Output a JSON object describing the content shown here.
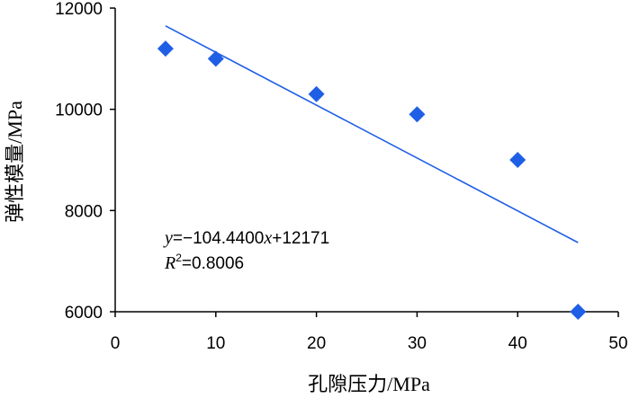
{
  "chart_data": {
    "type": "scatter",
    "title": "",
    "xlabel": "孔隙压力/MPa",
    "ylabel": "弹性模量/MPa",
    "xlim": [
      0,
      50
    ],
    "ylim": [
      6000,
      12000
    ],
    "x_ticks": [
      0,
      10,
      20,
      30,
      40,
      50
    ],
    "y_ticks": [
      6000,
      8000,
      10000,
      12000
    ],
    "x_tick_labels": [
      "0",
      "10",
      "20",
      "30",
      "40",
      "50"
    ],
    "y_tick_labels": [
      "6000",
      "8000",
      "10000",
      "12000"
    ],
    "grid": false,
    "marker": "diamond",
    "marker_color": "#1f5fe6",
    "series": [
      {
        "x": [
          5,
          10,
          20,
          30,
          40,
          46
        ],
        "y": [
          11200,
          11000,
          10300,
          9900,
          9000,
          6000
        ]
      }
    ],
    "trendline": {
      "slope": -104.44,
      "intercept": 12171,
      "x_range": [
        5,
        46
      ],
      "color": "#1f5fe6"
    },
    "annotations": {
      "equation_y": "y",
      "equation_eq": "=−104.4400",
      "equation_x": "x",
      "equation_tail": "+12171",
      "r2_r": "R",
      "r2_sup": "2",
      "r2_value": "=0.8006"
    }
  }
}
